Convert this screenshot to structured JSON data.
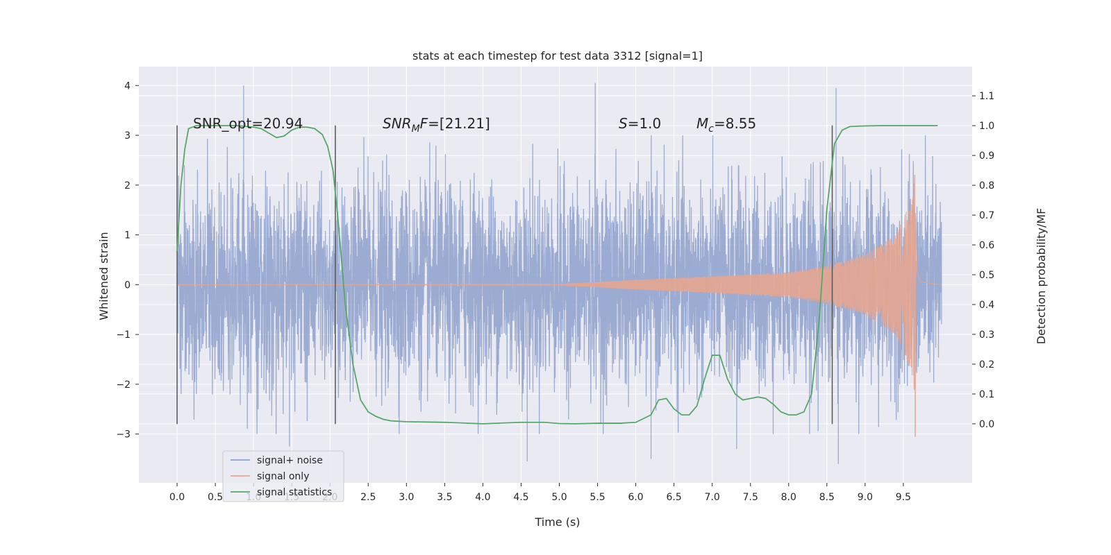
{
  "chart_data": {
    "type": "line",
    "title": "stats at each timestep for test data 3312 [signal=1]",
    "xlabel": "Time (s)",
    "ylabel_left": "Whitened strain",
    "ylabel_right": "Detection probability/MF",
    "xlim": [
      -0.5,
      10.4
    ],
    "ylim_left": [
      -3.98,
      4.38
    ],
    "ylim_right": [
      -0.198,
      1.198
    ],
    "x_ticks": [
      "0.0",
      "0.5",
      "1.0",
      "1.5",
      "2.0",
      "2.5",
      "3.0",
      "3.5",
      "4.0",
      "4.5",
      "5.0",
      "5.5",
      "6.0",
      "6.5",
      "7.0",
      "7.5",
      "8.0",
      "8.5",
      "9.0",
      "9.5"
    ],
    "y_ticks_left": [
      "4",
      "3",
      "2",
      "1",
      "0",
      "−1",
      "−2",
      "−3"
    ],
    "y_ticks_right": [
      "1.1",
      "1.0",
      "0.9",
      "0.8",
      "0.7",
      "0.6",
      "0.5",
      "0.4",
      "0.3",
      "0.2",
      "0.1",
      "0.0"
    ],
    "grid": true,
    "legend_position": "lower-left",
    "annotations": {
      "snr_opt": "SNR_opt=20.94",
      "snr_mf_main": "SNR",
      "snr_mf_sub": "M",
      "snr_mf_rest": "F=[21.21]",
      "s_main": "S",
      "s_rest": "=1.0",
      "mc_main": "M",
      "mc_sub": "c",
      "mc_rest": "=8.55"
    },
    "segment_markers_x": [
      0.0,
      2.07,
      8.57
    ],
    "series": [
      {
        "name": "signal+ noise",
        "color": "#8da0cb",
        "axis": "left",
        "x_range": [
          0.0,
          10.0
        ],
        "rms_amplitude": 1.0,
        "peak_values": [
          {
            "x": 0.87,
            "y": 4.0
          },
          {
            "x": 1.47,
            "y": -3.25
          },
          {
            "x": 4.58,
            "y": -3.55
          },
          {
            "x": 5.47,
            "y": 4.05
          },
          {
            "x": 6.2,
            "y": -3.5
          },
          {
            "x": 8.65,
            "y": -3.6
          },
          {
            "x": 8.62,
            "y": 3.95
          },
          {
            "x": 7.32,
            "y": -3.3
          }
        ]
      },
      {
        "name": "signal only",
        "color": "#e5a58f",
        "axis": "left",
        "x_range": [
          0.0,
          10.0
        ],
        "merger_time": 9.65,
        "peak_amplitude_positive": 2.2,
        "peak_amplitude_negative": -3.05,
        "envelope": [
          [
            0.0,
            0.0
          ],
          [
            5.0,
            0.01
          ],
          [
            5.5,
            0.05
          ],
          [
            6.0,
            0.1
          ],
          [
            7.0,
            0.17
          ],
          [
            8.0,
            0.25
          ],
          [
            8.5,
            0.38
          ],
          [
            9.0,
            0.6
          ],
          [
            9.4,
            1.0
          ],
          [
            9.6,
            1.7
          ],
          [
            9.65,
            2.2
          ],
          [
            9.68,
            0.3
          ],
          [
            9.72,
            0.06
          ],
          [
            10.0,
            0.0
          ]
        ]
      },
      {
        "name": "signal statistics",
        "color": "#55a868",
        "axis": "right",
        "x": [
          0.0,
          0.05,
          0.1,
          0.15,
          0.25,
          0.4,
          0.6,
          0.8,
          1.0,
          1.1,
          1.2,
          1.3,
          1.4,
          1.5,
          1.6,
          1.7,
          1.8,
          1.9,
          1.97,
          2.04,
          2.1,
          2.15,
          2.2,
          2.3,
          2.4,
          2.5,
          2.6,
          2.7,
          2.8,
          3.0,
          3.5,
          4.0,
          4.5,
          4.8,
          5.0,
          5.2,
          5.5,
          5.8,
          6.0,
          6.2,
          6.3,
          6.4,
          6.5,
          6.6,
          6.7,
          6.8,
          6.9,
          7.0,
          7.1,
          7.2,
          7.3,
          7.4,
          7.5,
          7.6,
          7.7,
          7.8,
          7.9,
          8.0,
          8.1,
          8.2,
          8.3,
          8.4,
          8.5,
          8.6,
          8.7,
          8.8,
          9.0,
          9.2,
          9.5,
          9.7,
          9.95
        ],
        "y": [
          0.58,
          0.8,
          0.92,
          0.99,
          1.0,
          1.0,
          1.0,
          1.0,
          0.995,
          0.99,
          0.975,
          0.96,
          0.965,
          0.985,
          0.995,
          0.995,
          0.99,
          0.97,
          0.93,
          0.85,
          0.7,
          0.55,
          0.4,
          0.2,
          0.08,
          0.04,
          0.025,
          0.015,
          0.01,
          0.007,
          0.005,
          0.0,
          0.005,
          0.005,
          0.001,
          0.0,
          0.002,
          0.002,
          0.005,
          0.03,
          0.08,
          0.085,
          0.05,
          0.03,
          0.03,
          0.06,
          0.15,
          0.23,
          0.23,
          0.15,
          0.1,
          0.08,
          0.085,
          0.09,
          0.085,
          0.065,
          0.04,
          0.03,
          0.03,
          0.04,
          0.1,
          0.35,
          0.72,
          0.94,
          0.985,
          0.997,
          0.999,
          1.0,
          1.0,
          1.0,
          1.0
        ]
      }
    ]
  }
}
